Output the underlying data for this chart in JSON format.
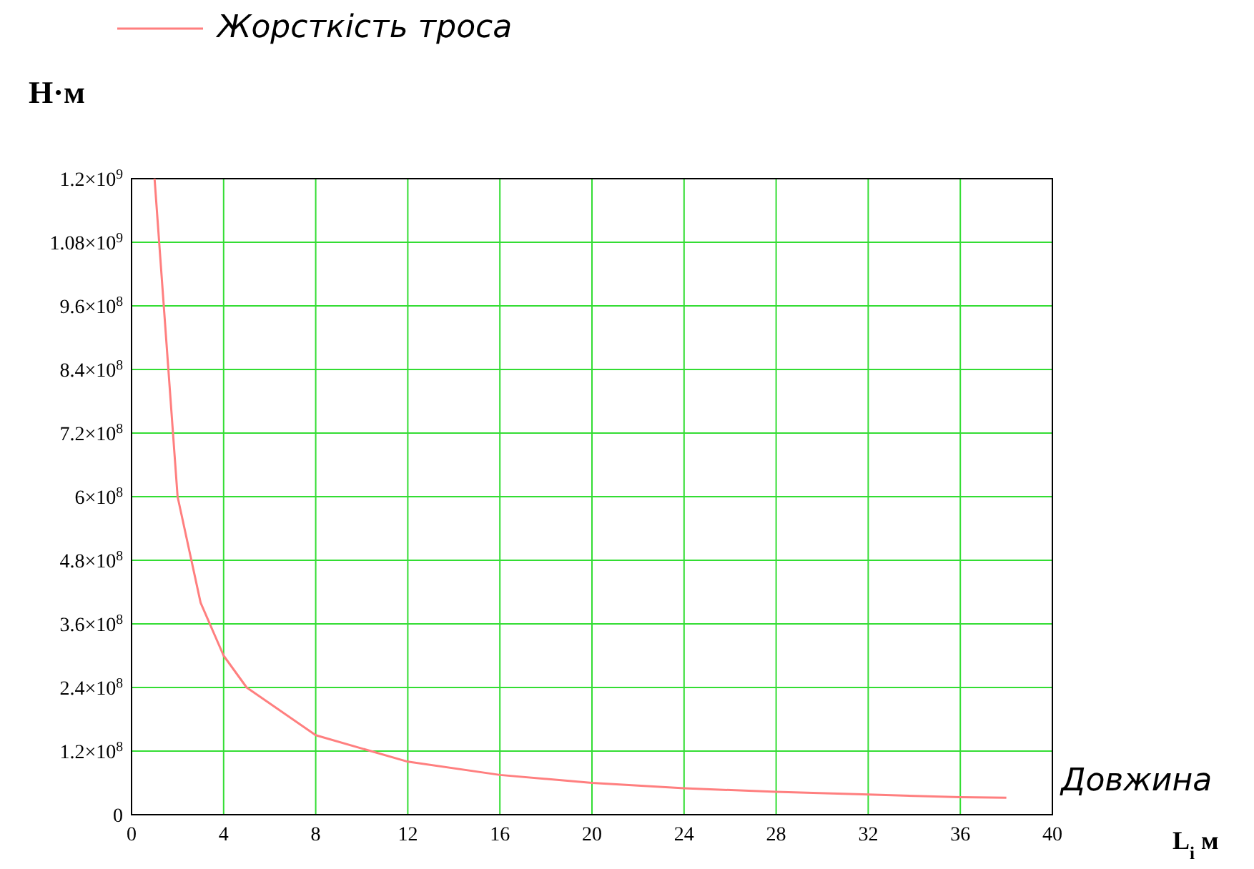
{
  "chart_data": {
    "type": "line",
    "ylabel": "Н·м",
    "xlabel": "L$_{i}$  м",
    "annotations": [
      "Довжина"
    ],
    "x": [
      1,
      2,
      3,
      4,
      5,
      8,
      12,
      16,
      20,
      24,
      28,
      32,
      36,
      38
    ],
    "series": [
      {
        "name": "Жорсткість троса",
        "color": "#ff7f7f",
        "values": [
          1200000000,
          600000000,
          400000000,
          300000000,
          240000000,
          150000000,
          100000000,
          75000000,
          60000000,
          50000000,
          43000000,
          38000000,
          33000000,
          32000000
        ]
      }
    ],
    "xlim": [
      0,
      40
    ],
    "xticks": [
      0,
      4,
      8,
      12,
      16,
      20,
      24,
      28,
      32,
      36,
      40
    ],
    "ylim": [
      0,
      1200000000
    ],
    "yticks": [
      0,
      {
        "value": 120000000,
        "label": "1.2×10$^{8}$"
      },
      {
        "value": 240000000,
        "label": "2.4×10$^{8}$"
      },
      {
        "value": 360000000,
        "label": "3.6×10$^{8}$"
      },
      {
        "value": 480000000,
        "label": "4.8×10$^{8}$"
      },
      {
        "value": 600000000,
        "label": "6×10$^{8}$"
      },
      {
        "value": 720000000,
        "label": "7.2×10$^{8}$"
      },
      {
        "value": 840000000,
        "label": "8.4×10$^{8}$"
      },
      {
        "value": 960000000,
        "label": "9.6×10$^{8}$"
      },
      {
        "value": 1080000000,
        "label": "1.08×10$^{9}$"
      },
      {
        "value": 1200000000,
        "label": "1.2×10$^{9}$"
      }
    ],
    "grid": true,
    "legend": "top left",
    "marker": "none",
    "line_style": "solid"
  }
}
